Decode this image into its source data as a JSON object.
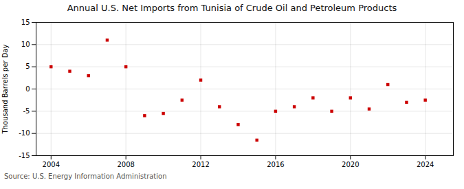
{
  "chart_data": {
    "type": "scatter",
    "title": "Annual U.S. Net Imports from Tunisia of Crude Oil and Petroleum Products",
    "ylabel": "Thousand Barrels per Day",
    "caption": "Source: U.S. Energy Information Administration",
    "x": [
      2004,
      2005,
      2006,
      2007,
      2008,
      2009,
      2010,
      2011,
      2012,
      2013,
      2014,
      2015,
      2016,
      2017,
      2018,
      2019,
      2020,
      2021,
      2022,
      2023,
      2024
    ],
    "values": [
      5.0,
      4.0,
      3.0,
      11.0,
      5.0,
      -6.0,
      -5.5,
      -2.5,
      2.0,
      -4.0,
      -8.0,
      -11.5,
      -5.0,
      -4.0,
      -2.0,
      -5.0,
      -2.0,
      -4.5,
      1.0,
      -3.0,
      -2.5
    ],
    "color": "#cc0000",
    "marker": "square",
    "xlim": [
      2003.2,
      2025.5
    ],
    "xticks": [
      2004,
      2008,
      2012,
      2016,
      2020,
      2024
    ],
    "ylim": [
      -15,
      15
    ],
    "yticks": [
      -15,
      -10,
      -5,
      0,
      5,
      10,
      15
    ],
    "grid": true
  }
}
